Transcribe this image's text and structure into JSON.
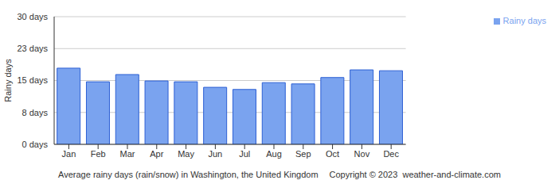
{
  "chart_data": {
    "type": "bar",
    "title": "Average rainy days (rain/snow) in Washington, the United Kingdom",
    "annotations": [
      "Copyright © 2023  weather-and-climate.com"
    ],
    "y_label": "Rainy days",
    "categories": [
      "Jan",
      "Feb",
      "Mar",
      "Apr",
      "May",
      "Jun",
      "Jul",
      "Aug",
      "Sep",
      "Oct",
      "Nov",
      "Dec"
    ],
    "series": [
      {
        "name": "Rainy days",
        "color": "#7aa3ef",
        "values": [
          17.9,
          14.7,
          16.4,
          14.9,
          14.7,
          13.4,
          12.9,
          14.5,
          14.2,
          15.7,
          17.5,
          17.3
        ]
      }
    ],
    "ylim": [
      0,
      30
    ],
    "yticks": [
      {
        "value": 0,
        "label": "0 days"
      },
      {
        "value": 7.5,
        "label": "8 days"
      },
      {
        "value": 15,
        "label": "15 days"
      },
      {
        "value": 22.5,
        "label": "23 days"
      },
      {
        "value": 30,
        "label": "30 days"
      }
    ],
    "grid": true,
    "legend": "upper right"
  }
}
